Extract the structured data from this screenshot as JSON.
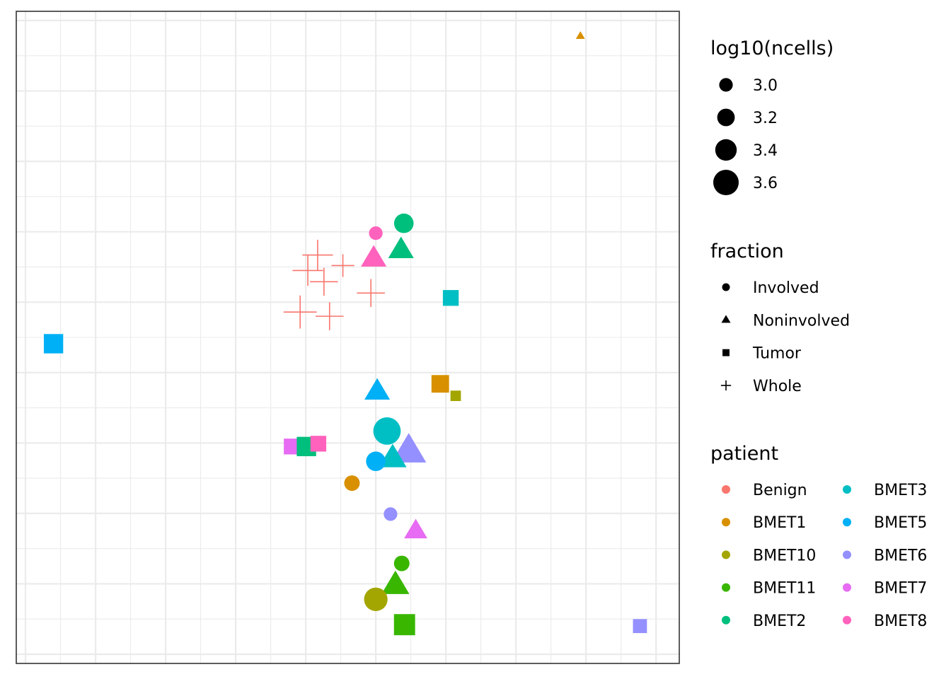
{
  "chart_data": {
    "type": "scatter",
    "title": "",
    "xlabel": "",
    "ylabel": "",
    "xlim": [
      0,
      9.2
    ],
    "ylim": [
      0,
      9
    ],
    "grid": true,
    "axis_ticks_shown": false,
    "legends": {
      "size": {
        "title": "log10(ncells)",
        "entries": [
          {
            "label": "3.0",
            "value": 3.0
          },
          {
            "label": "3.2",
            "value": 3.2
          },
          {
            "label": "3.4",
            "value": 3.4
          },
          {
            "label": "3.6",
            "value": 3.6
          }
        ]
      },
      "shape": {
        "title": "fraction",
        "entries": [
          {
            "label": "Involved",
            "shape": "circle"
          },
          {
            "label": "Noninvolved",
            "shape": "triangle"
          },
          {
            "label": "Tumor",
            "shape": "square"
          },
          {
            "label": "Whole",
            "shape": "plus"
          }
        ]
      },
      "color": {
        "title": "patient",
        "entries": [
          {
            "label": "Benign",
            "color": "#F8766D"
          },
          {
            "label": "BMET1",
            "color": "#D89000"
          },
          {
            "label": "BMET10",
            "color": "#A3A500"
          },
          {
            "label": "BMET11",
            "color": "#39B600"
          },
          {
            "label": "BMET2",
            "color": "#00BF7D"
          },
          {
            "label": "BMET3",
            "color": "#00BFC4"
          },
          {
            "label": "BMET5",
            "color": "#00B0F6"
          },
          {
            "label": "BMET6",
            "color": "#9590FF"
          },
          {
            "label": "BMET7",
            "color": "#E76BF3"
          },
          {
            "label": "BMET8",
            "color": "#FF62BC"
          }
        ]
      }
    },
    "points": [
      {
        "patient": "BMET1",
        "fraction": "Noninvolved",
        "x": 7.92,
        "y": 8.78,
        "size": 2.7
      },
      {
        "patient": "BMET2",
        "fraction": "Involved",
        "x": 5.4,
        "y": 6.12,
        "size": 3.3
      },
      {
        "patient": "BMET8",
        "fraction": "Involved",
        "x": 5.0,
        "y": 5.98,
        "size": 3.0
      },
      {
        "patient": "BMET2",
        "fraction": "Noninvolved",
        "x": 5.36,
        "y": 5.74,
        "size": 3.4
      },
      {
        "patient": "BMET8",
        "fraction": "Noninvolved",
        "x": 4.97,
        "y": 5.62,
        "size": 3.4
      },
      {
        "patient": "Benign",
        "fraction": "Whole",
        "x": 4.17,
        "y": 5.67,
        "size": 3.5
      },
      {
        "patient": "Benign",
        "fraction": "Whole",
        "x": 4.03,
        "y": 5.45,
        "size": 3.5
      },
      {
        "patient": "Benign",
        "fraction": "Whole",
        "x": 4.53,
        "y": 5.52,
        "size": 3.2
      },
      {
        "patient": "Benign",
        "fraction": "Whole",
        "x": 4.26,
        "y": 5.29,
        "size": 3.4
      },
      {
        "patient": "Benign",
        "fraction": "Whole",
        "x": 4.93,
        "y": 5.13,
        "size": 3.4
      },
      {
        "patient": "Benign",
        "fraction": "Whole",
        "x": 3.92,
        "y": 4.86,
        "size": 3.6
      },
      {
        "patient": "Benign",
        "fraction": "Whole",
        "x": 4.34,
        "y": 4.8,
        "size": 3.4
      },
      {
        "patient": "BMET3",
        "fraction": "Tumor",
        "x": 6.07,
        "y": 5.06,
        "size": 3.2
      },
      {
        "patient": "BMET5",
        "fraction": "Tumor",
        "x": 0.4,
        "y": 4.41,
        "size": 3.4
      },
      {
        "patient": "BMET1",
        "fraction": "Tumor",
        "x": 5.92,
        "y": 3.84,
        "size": 3.3
      },
      {
        "patient": "BMET10",
        "fraction": "Tumor",
        "x": 6.14,
        "y": 3.67,
        "size": 2.9
      },
      {
        "patient": "BMET5",
        "fraction": "Noninvolved",
        "x": 5.02,
        "y": 3.73,
        "size": 3.4
      },
      {
        "patient": "BMET3",
        "fraction": "Involved",
        "x": 5.16,
        "y": 3.17,
        "size": 3.7
      },
      {
        "patient": "BMET6",
        "fraction": "Noninvolved",
        "x": 5.47,
        "y": 2.88,
        "size": 3.8
      },
      {
        "patient": "BMET3",
        "fraction": "Noninvolved",
        "x": 5.24,
        "y": 2.78,
        "size": 3.5
      },
      {
        "patient": "BMET5",
        "fraction": "Involved",
        "x": 5.0,
        "y": 2.74,
        "size": 3.3
      },
      {
        "patient": "BMET7",
        "fraction": "Tumor",
        "x": 3.8,
        "y": 2.95,
        "size": 3.2
      },
      {
        "patient": "BMET2",
        "fraction": "Tumor",
        "x": 4.01,
        "y": 2.95,
        "size": 3.4
      },
      {
        "patient": "BMET8",
        "fraction": "Tumor",
        "x": 4.18,
        "y": 2.99,
        "size": 3.2
      },
      {
        "patient": "BMET1",
        "fraction": "Involved",
        "x": 4.66,
        "y": 2.43,
        "size": 3.1
      },
      {
        "patient": "BMET6",
        "fraction": "Involved",
        "x": 5.21,
        "y": 1.99,
        "size": 3.0
      },
      {
        "patient": "BMET7",
        "fraction": "Noninvolved",
        "x": 5.57,
        "y": 1.75,
        "size": 3.3
      },
      {
        "patient": "BMET11",
        "fraction": "Involved",
        "x": 5.37,
        "y": 1.29,
        "size": 3.1
      },
      {
        "patient": "BMET11",
        "fraction": "Noninvolved",
        "x": 5.28,
        "y": 0.98,
        "size": 3.5
      },
      {
        "patient": "BMET10",
        "fraction": "Involved",
        "x": 5.0,
        "y": 0.78,
        "size": 3.5
      },
      {
        "patient": "BMET11",
        "fraction": "Tumor",
        "x": 5.41,
        "y": 0.42,
        "size": 3.5
      },
      {
        "patient": "BMET6",
        "fraction": "Tumor",
        "x": 8.77,
        "y": 0.4,
        "size": 3.1
      }
    ]
  }
}
